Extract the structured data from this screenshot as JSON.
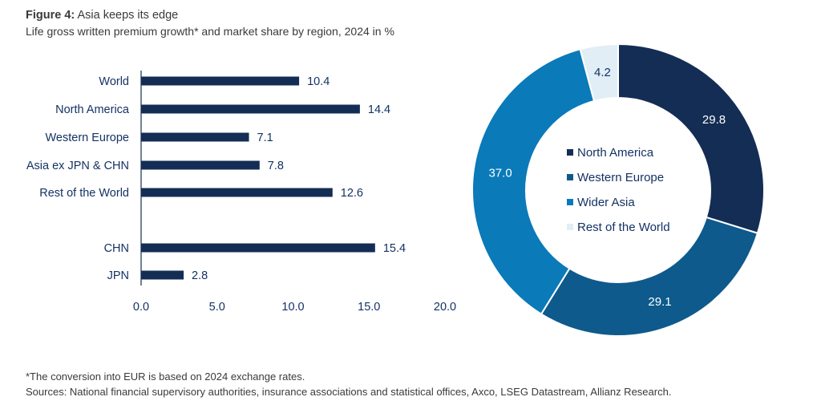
{
  "title_prefix": "Figure 4:",
  "title_text": "Asia keeps its edge",
  "subtitle": "Life gross written premium growth* and market share by region, 2024 in %",
  "notes": {
    "footnote": "*The conversion into EUR is based on 2024 exchange rates.",
    "sources": "Sources: National financial supervisory authorities, insurance associations and statistical offices, Axco, LSEG Datastream, Allianz Research."
  },
  "colors": {
    "navy": "#142d55",
    "dark_blue": "#0f5a8c",
    "mid_blue": "#0a7ab9",
    "light_blue": "#e2eef6"
  },
  "chart_data": [
    {
      "type": "bar",
      "orientation": "horizontal",
      "title": "Life gross written premium growth*, 2024 in %",
      "categories": [
        "World",
        "North America",
        "Western Europe",
        "Asia ex JPN & CHN",
        "Rest of the World",
        "CHN",
        "JPN"
      ],
      "values": [
        10.4,
        14.4,
        7.1,
        7.8,
        12.6,
        15.4,
        2.8
      ],
      "value_labels": [
        "10.4",
        "14.4",
        "7.1",
        "7.8",
        "12.6",
        "15.4",
        "2.8"
      ],
      "xlim": [
        0,
        20
      ],
      "xticks": [
        0,
        5,
        10,
        15,
        20
      ],
      "xtick_labels": [
        "0.0",
        "5.0",
        "10.0",
        "15.0",
        "20.0"
      ],
      "grid": false
    },
    {
      "type": "pie",
      "donut": true,
      "title": "Market share by region, 2024 in %",
      "labels": [
        "North America",
        "Western Europe",
        "Wider Asia",
        "Rest of the World"
      ],
      "values": [
        29.8,
        29.1,
        37.0,
        4.2
      ],
      "value_labels": [
        "29.8",
        "29.1",
        "37.0",
        "4.2"
      ],
      "colors": [
        "#142d55",
        "#0f5a8c",
        "#0a7ab9",
        "#e2eef6"
      ],
      "legend_position": "center"
    }
  ]
}
